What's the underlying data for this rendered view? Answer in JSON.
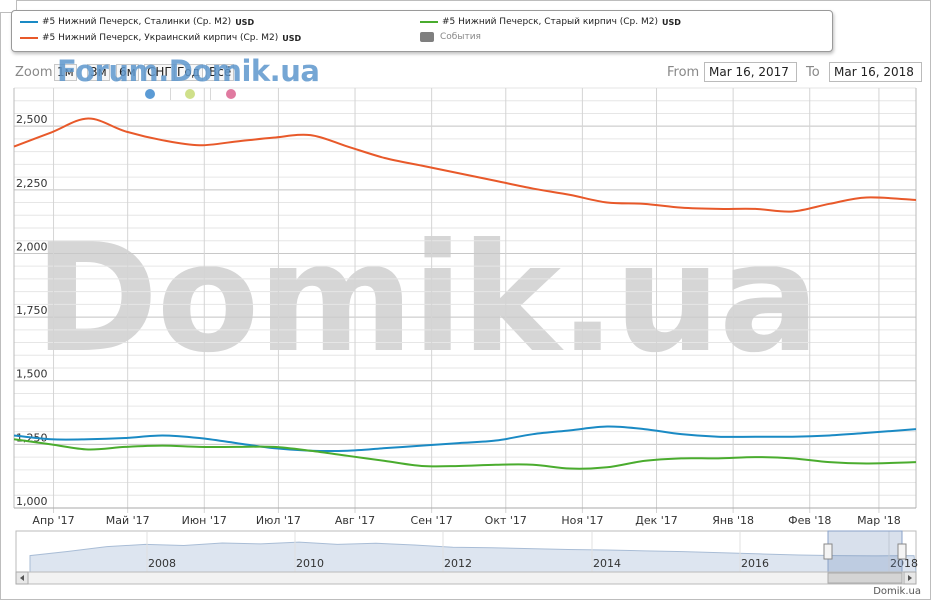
{
  "legend": {
    "items": [
      {
        "label": "#5 Нижний Печерск, Сталинки (Ср. М2)",
        "unit": "USD",
        "color": "#1a8ac4"
      },
      {
        "label": "#5 Нижний Печерск, Старый кирпич (Ср. М2)",
        "unit": "USD",
        "color": "#4aac2e"
      },
      {
        "label": "#5 Нижний Печерск, Украинский кирпич (Ср. М2)",
        "unit": "USD",
        "color": "#e8592a"
      }
    ],
    "events_label": "События"
  },
  "zoom": {
    "label": "Zoom",
    "buttons": [
      "1м",
      "3м",
      "6м",
      "СНГ",
      "Год",
      "Всё"
    ]
  },
  "watermark_small": "Forum.Domik.ua",
  "watermark_big": "Domik.ua",
  "range": {
    "from_label": "From",
    "from_value": "Mar 16, 2017",
    "to_label": "To",
    "to_value": "Mar 16, 2018"
  },
  "event_dot_colors": [
    "#5b9bd5",
    "#cfe08a",
    "#e07aa0"
  ],
  "credit": "Domik.ua",
  "chart_data": {
    "type": "line",
    "ylim": [
      1000,
      2650
    ],
    "yticks": [
      1000,
      1250,
      1500,
      1750,
      2000,
      2250,
      2500
    ],
    "ytick_labels": [
      "1,000",
      "1,250",
      "1,500",
      "1,750",
      "2,000",
      "2,250",
      "2,500"
    ],
    "xtick_labels": [
      "Апр '17",
      "Май '17",
      "Июн '17",
      "Июл '17",
      "Авг '17",
      "Сен '17",
      "Окт '17",
      "Ноя '17",
      "Дек '17",
      "Янв '18",
      "Фев '18",
      "Мар '18"
    ],
    "xtick_dates": [
      "2017-04-01",
      "2017-05-01",
      "2017-06-01",
      "2017-07-01",
      "2017-08-01",
      "2017-09-01",
      "2017-10-01",
      "2017-11-01",
      "2017-12-01",
      "2018-01-01",
      "2018-02-01",
      "2018-03-01"
    ],
    "x": [
      "2017-03-16",
      "2017-03-31",
      "2017-04-15",
      "2017-04-30",
      "2017-05-15",
      "2017-05-30",
      "2017-06-14",
      "2017-06-29",
      "2017-07-14",
      "2017-07-29",
      "2017-08-13",
      "2017-08-28",
      "2017-09-12",
      "2017-09-27",
      "2017-10-12",
      "2017-10-27",
      "2017-11-11",
      "2017-11-26",
      "2017-12-11",
      "2017-12-26",
      "2018-01-10",
      "2018-01-25",
      "2018-02-09",
      "2018-02-24",
      "2018-03-16"
    ],
    "series": [
      {
        "name": "#5 Нижний Печерск, Украинский кирпич (Ср. М2)",
        "color": "#e8592a",
        "values": [
          2420,
          2475,
          2530,
          2480,
          2445,
          2425,
          2440,
          2455,
          2465,
          2420,
          2375,
          2345,
          2315,
          2285,
          2255,
          2230,
          2200,
          2195,
          2180,
          2175,
          2175,
          2165,
          2195,
          2220,
          2210
        ]
      },
      {
        "name": "#5 Нижний Печерск, Сталинки (Ср. М2)",
        "color": "#1a8ac4",
        "values": [
          1285,
          1270,
          1270,
          1275,
          1285,
          1275,
          1255,
          1235,
          1225,
          1225,
          1235,
          1245,
          1255,
          1265,
          1290,
          1305,
          1320,
          1310,
          1290,
          1280,
          1280,
          1280,
          1285,
          1295,
          1310
        ]
      },
      {
        "name": "#5 Нижний Печерск, Старый кирпич (Ср. М2)",
        "color": "#4aac2e",
        "values": [
          1270,
          1250,
          1230,
          1240,
          1245,
          1240,
          1240,
          1240,
          1225,
          1205,
          1185,
          1165,
          1165,
          1170,
          1170,
          1155,
          1160,
          1185,
          1195,
          1195,
          1200,
          1195,
          1180,
          1175,
          1180
        ]
      }
    ],
    "navigator": {
      "year_labels": [
        "2008",
        "2010",
        "2012",
        "2014",
        "2016",
        "2018"
      ]
    }
  }
}
